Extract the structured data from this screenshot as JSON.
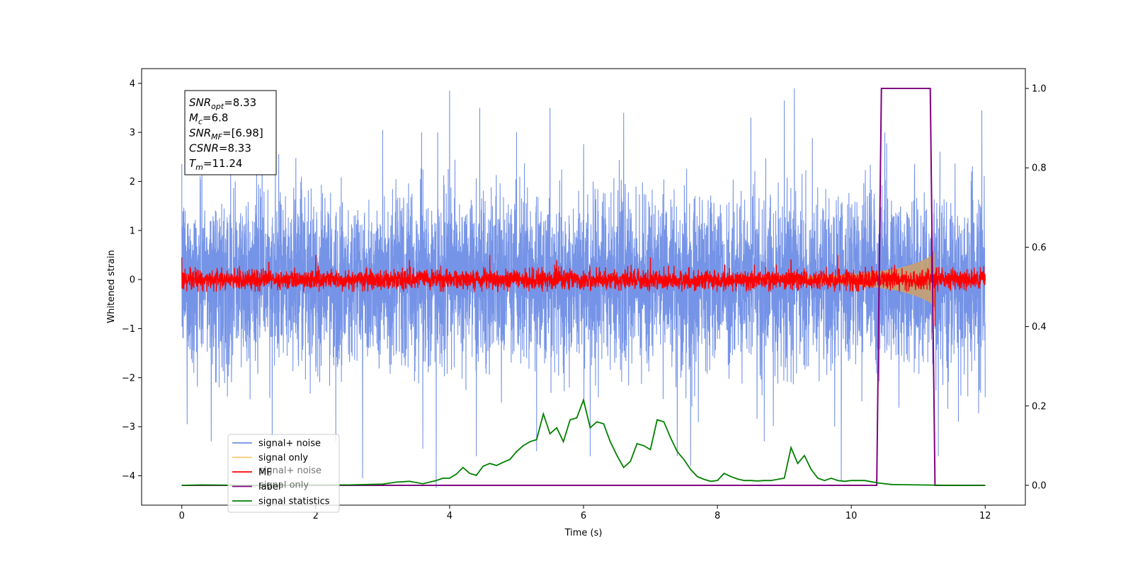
{
  "chart_data": {
    "type": "line",
    "xlabel": "Time (s)",
    "ylabel": "Whitened strain",
    "ylabel_right": "",
    "xlim": [
      -0.6,
      12.6
    ],
    "ylim": [
      -4.6,
      4.3
    ],
    "ylim_right": [
      -0.05,
      1.05
    ],
    "x_ticks": [
      0,
      2,
      4,
      6,
      8,
      10,
      12
    ],
    "y_ticks": [
      -4,
      -3,
      -2,
      -1,
      0,
      1,
      2,
      3,
      4
    ],
    "y_ticks_right": [
      0.0,
      0.2,
      0.4,
      0.6,
      0.8,
      1.0
    ],
    "x_tick_labels": [
      "0",
      "2",
      "4",
      "6",
      "8",
      "10",
      "12"
    ],
    "y_tick_labels": [
      "−4",
      "−3",
      "−2",
      "−1",
      "0",
      "1",
      "2",
      "3",
      "4"
    ],
    "y_tick_labels_right": [
      "0.0",
      "0.2",
      "0.4",
      "0.6",
      "0.8",
      "1.0"
    ],
    "grid": false,
    "legend_position": "lower-left",
    "annotation": {
      "lines": [
        {
          "base": "SNR",
          "sub": "opt",
          "value": "=8.33"
        },
        {
          "base": "M",
          "sub": "c",
          "value": "=6.8"
        },
        {
          "base": "SNR",
          "sub": "MF",
          "value": "=[6.98]"
        },
        {
          "base": "CSNR",
          "sub": "",
          "value": "=8.33"
        },
        {
          "base": "T",
          "sub": "m",
          "value": "=11.24"
        }
      ]
    },
    "legend": [
      {
        "label": "signal+ noise",
        "color": "#6f8ee6"
      },
      {
        "label": "signal only",
        "color": "#ffc766"
      },
      {
        "label": "MF",
        "color": "#ff0000"
      },
      {
        "label": "label",
        "color": "#800080"
      },
      {
        "label": "signal statistics",
        "color": "#008000"
      }
    ],
    "legend_ghost": [
      "signal+ noise",
      "signal only"
    ],
    "series": [
      {
        "name": "signal+ noise",
        "axis": "left",
        "color": "#6f8ee6",
        "description_range": [
          0,
          12
        ],
        "typical_amplitude": 2.0,
        "peak_values": [
          {
            "x": 0.05,
            "y": 1.4
          },
          {
            "x": 0.08,
            "y": -2.95
          },
          {
            "x": 0.18,
            "y": -1.9
          },
          {
            "x": 0.3,
            "y": 2.7
          },
          {
            "x": 0.44,
            "y": -3.3
          },
          {
            "x": 1.2,
            "y": 3.0
          },
          {
            "x": 1.35,
            "y": -3.2
          },
          {
            "x": 2.3,
            "y": -3.3
          },
          {
            "x": 2.7,
            "y": -4.05
          },
          {
            "x": 3.0,
            "y": 3.05
          },
          {
            "x": 3.6,
            "y": -3.45
          },
          {
            "x": 3.8,
            "y": -4.25
          },
          {
            "x": 4.0,
            "y": 3.85
          },
          {
            "x": 4.4,
            "y": -3.6
          },
          {
            "x": 4.45,
            "y": 3.5
          },
          {
            "x": 5.0,
            "y": 3.0
          },
          {
            "x": 5.3,
            "y": -3.5
          },
          {
            "x": 5.5,
            "y": 3.5
          },
          {
            "x": 6.1,
            "y": -3.6
          },
          {
            "x": 6.6,
            "y": 3.4
          },
          {
            "x": 7.4,
            "y": -3.6
          },
          {
            "x": 7.6,
            "y": -3.8
          },
          {
            "x": 8.5,
            "y": 3.3
          },
          {
            "x": 8.7,
            "y": -3.3
          },
          {
            "x": 9.0,
            "y": 3.65
          },
          {
            "x": 9.15,
            "y": 3.9
          },
          {
            "x": 9.85,
            "y": -4.1
          },
          {
            "x": 10.5,
            "y": 3.0
          },
          {
            "x": 11.3,
            "y": -3.6
          },
          {
            "x": 11.6,
            "y": -2.9
          },
          {
            "x": 11.95,
            "y": 3.45
          },
          {
            "x": 12.0,
            "y": -2.4
          }
        ]
      },
      {
        "name": "signal only",
        "axis": "left",
        "color": "#c8a070",
        "x": [
          8.2,
          9.0,
          9.6,
          10.0,
          10.4,
          10.7,
          10.9,
          11.05,
          11.15,
          11.22,
          11.24
        ],
        "envelope": [
          0.02,
          0.04,
          0.07,
          0.1,
          0.16,
          0.22,
          0.3,
          0.37,
          0.44,
          0.5,
          0.55
        ]
      },
      {
        "name": "MF",
        "axis": "left",
        "color": "#ff0000",
        "description_range": [
          0,
          12
        ],
        "typical_amplitude": 0.2,
        "peak_values": [
          {
            "x": 0.0,
            "y": 0.45
          },
          {
            "x": 1.3,
            "y": 0.35
          },
          {
            "x": 2.0,
            "y": 0.5
          },
          {
            "x": 3.4,
            "y": 0.4
          },
          {
            "x": 4.6,
            "y": 0.5
          },
          {
            "x": 5.6,
            "y": 0.4
          },
          {
            "x": 7.0,
            "y": 0.45
          },
          {
            "x": 9.1,
            "y": 0.4
          },
          {
            "x": 9.8,
            "y": 0.5
          },
          {
            "x": 11.2,
            "y": 1.0
          },
          {
            "x": 11.25,
            "y": -0.95
          }
        ]
      },
      {
        "name": "label",
        "axis": "right",
        "color": "#800080",
        "x": [
          0,
          10.38,
          10.45,
          11.18,
          11.25,
          12.0
        ],
        "y": [
          0,
          0,
          1,
          1,
          0,
          0
        ]
      },
      {
        "name": "signal statistics",
        "axis": "right",
        "color": "#008000",
        "x": [
          0,
          0.3,
          1.0,
          2.0,
          2.5,
          3.0,
          3.2,
          3.4,
          3.6,
          3.8,
          3.9,
          4.0,
          4.1,
          4.2,
          4.3,
          4.4,
          4.5,
          4.6,
          4.7,
          4.8,
          4.9,
          5.0,
          5.1,
          5.2,
          5.3,
          5.4,
          5.5,
          5.6,
          5.7,
          5.8,
          5.9,
          6.0,
          6.1,
          6.2,
          6.3,
          6.4,
          6.5,
          6.6,
          6.7,
          6.8,
          6.9,
          7.0,
          7.1,
          7.2,
          7.3,
          7.4,
          7.5,
          7.6,
          7.7,
          7.8,
          7.9,
          8.0,
          8.1,
          8.2,
          8.3,
          8.4,
          8.5,
          8.6,
          8.7,
          8.8,
          8.9,
          9.0,
          9.1,
          9.2,
          9.3,
          9.4,
          9.5,
          9.6,
          9.7,
          9.8,
          9.9,
          10.0,
          10.2,
          10.4,
          10.6,
          11.0,
          11.5,
          12.0
        ],
        "y": [
          0.0,
          0.001,
          0.0,
          0.001,
          0.001,
          0.003,
          0.008,
          0.01,
          0.004,
          0.012,
          0.018,
          0.018,
          0.028,
          0.045,
          0.03,
          0.025,
          0.048,
          0.055,
          0.05,
          0.058,
          0.065,
          0.085,
          0.1,
          0.11,
          0.115,
          0.18,
          0.13,
          0.145,
          0.11,
          0.165,
          0.17,
          0.215,
          0.145,
          0.16,
          0.155,
          0.11,
          0.075,
          0.045,
          0.06,
          0.105,
          0.1,
          0.09,
          0.165,
          0.16,
          0.12,
          0.085,
          0.065,
          0.04,
          0.022,
          0.015,
          0.01,
          0.012,
          0.03,
          0.022,
          0.016,
          0.012,
          0.012,
          0.011,
          0.012,
          0.012,
          0.015,
          0.018,
          0.095,
          0.055,
          0.075,
          0.04,
          0.018,
          0.012,
          0.018,
          0.012,
          0.01,
          0.012,
          0.012,
          0.006,
          0.002,
          0.001,
          0.0,
          0.0
        ]
      }
    ]
  }
}
